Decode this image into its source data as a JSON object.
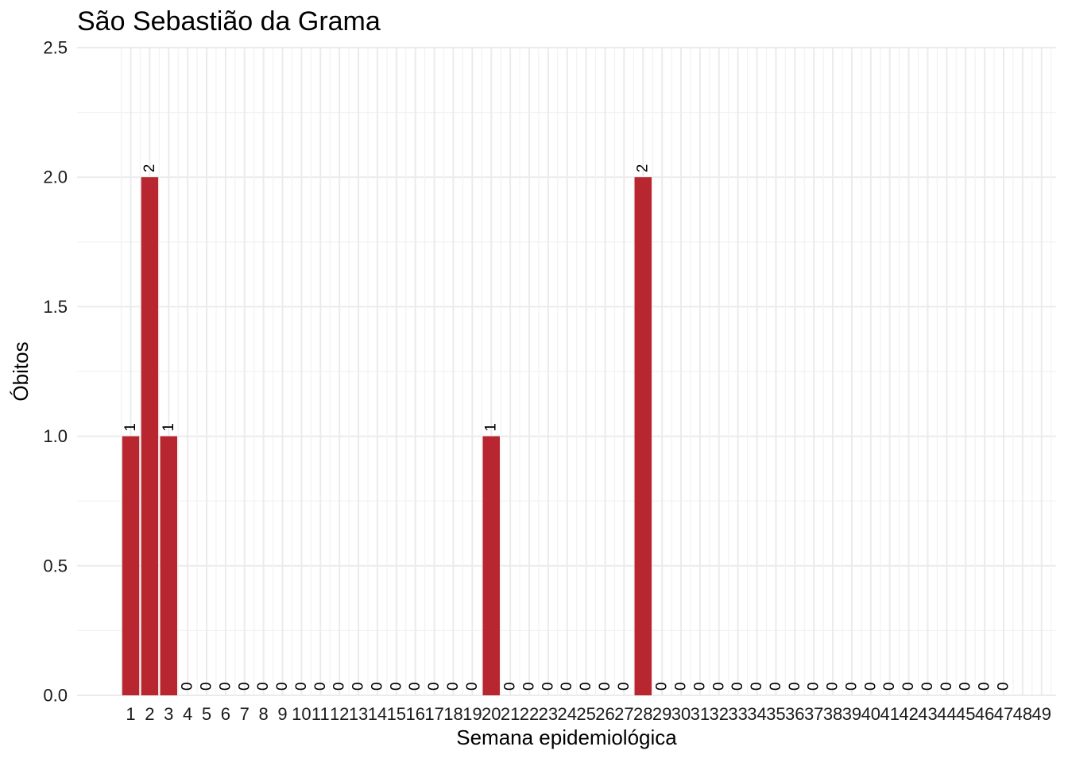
{
  "chart_data": {
    "type": "bar",
    "title": "São Sebastião da Grama",
    "xlabel": "Semana epidemiológica",
    "ylabel": "Óbitos",
    "ylim": [
      0,
      2.5
    ],
    "yticks": [
      "0.0",
      "0.5",
      "1.0",
      "1.5",
      "2.0",
      "2.5"
    ],
    "categories": [
      "1",
      "2",
      "3",
      "4",
      "5",
      "6",
      "7",
      "8",
      "9",
      "10",
      "11",
      "12",
      "13",
      "14",
      "15",
      "16",
      "17",
      "18",
      "19",
      "20",
      "21",
      "22",
      "23",
      "24",
      "25",
      "26",
      "27",
      "28",
      "29",
      "30",
      "31",
      "32",
      "33",
      "34",
      "35",
      "36",
      "37",
      "38",
      "39",
      "40",
      "41",
      "42",
      "43",
      "44",
      "45",
      "46",
      "47",
      "48",
      "49"
    ],
    "values": [
      1,
      2,
      1,
      0,
      0,
      0,
      0,
      0,
      0,
      0,
      0,
      0,
      0,
      0,
      0,
      0,
      0,
      0,
      0,
      1,
      0,
      0,
      0,
      0,
      0,
      0,
      0,
      2,
      0,
      0,
      0,
      0,
      0,
      0,
      0,
      0,
      0,
      0,
      0,
      0,
      0,
      0,
      0,
      0,
      0,
      0,
      0,
      null,
      null
    ],
    "bar_color": "#B8262F",
    "grid": true,
    "legend": "none"
  }
}
